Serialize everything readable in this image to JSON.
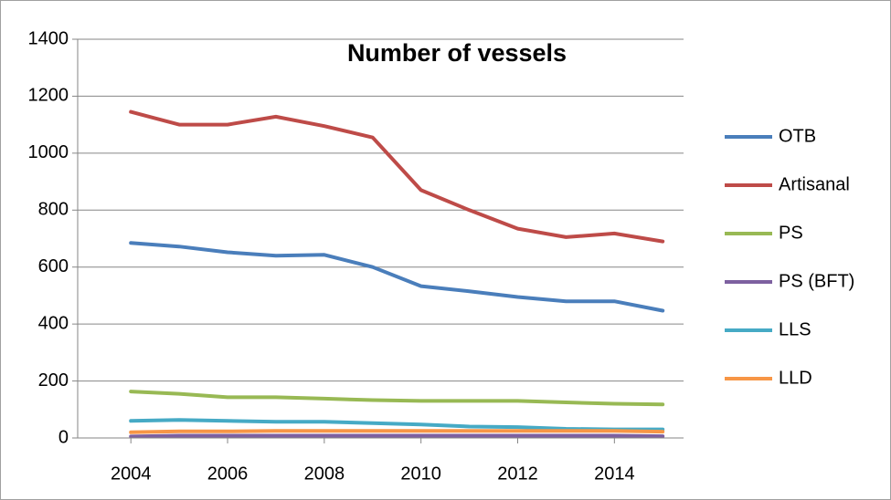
{
  "chart_data": {
    "type": "line",
    "title": "Number of vessels",
    "x": [
      2004,
      2005,
      2006,
      2007,
      2008,
      2009,
      2010,
      2011,
      2012,
      2013,
      2014,
      2015
    ],
    "xlim": [
      2002.9,
      2015.43
    ],
    "xticks": [
      2004,
      2006,
      2008,
      2010,
      2012,
      2014
    ],
    "ylim": [
      0,
      1400
    ],
    "yticks": [
      0,
      200,
      400,
      600,
      800,
      1000,
      1200,
      1400
    ],
    "grid": true,
    "legend": "right",
    "series": [
      {
        "name": "OTB",
        "color": "#4a7ebb",
        "values": [
          685,
          672,
          652,
          640,
          643,
          600,
          533,
          515,
          495,
          480,
          480,
          447
        ]
      },
      {
        "name": "Artisanal",
        "color": "#be4b48",
        "values": [
          1145,
          1100,
          1100,
          1128,
          1095,
          1055,
          870,
          800,
          735,
          705,
          718,
          690
        ]
      },
      {
        "name": "PS",
        "color": "#98b954",
        "values": [
          163,
          155,
          143,
          143,
          138,
          133,
          130,
          130,
          130,
          125,
          120,
          118
        ]
      },
      {
        "name": "PS (BFT)",
        "color": "#7d60a0",
        "values": [
          5,
          8,
          8,
          8,
          8,
          8,
          8,
          8,
          8,
          8,
          8,
          6
        ]
      },
      {
        "name": "LLS",
        "color": "#46aac5",
        "values": [
          60,
          63,
          60,
          57,
          57,
          52,
          47,
          40,
          38,
          32,
          30,
          30
        ]
      },
      {
        "name": "LLD",
        "color": "#f79646",
        "values": [
          20,
          23,
          23,
          25,
          25,
          25,
          25,
          25,
          25,
          25,
          25,
          22
        ]
      }
    ]
  }
}
